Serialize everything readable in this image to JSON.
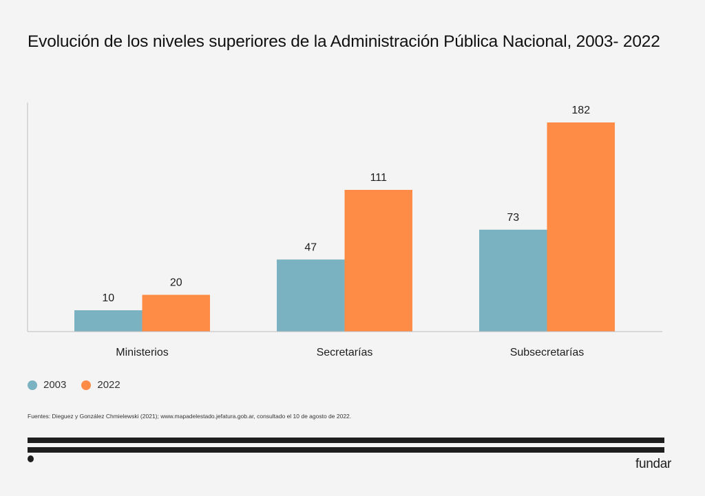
{
  "chart_data": {
    "type": "bar",
    "title": "Evolución de los niveles superiores de la Administración Pública Nacional, 2003- 2022",
    "xlabel": "",
    "ylabel": "",
    "categories": [
      "Ministerios",
      "Secretarías",
      "Subsecretarías"
    ],
    "series": [
      {
        "name": "2003",
        "color": "#7ab2c1",
        "values": [
          10,
          47,
          73
        ]
      },
      {
        "name": "2022",
        "color": "#ff8c46",
        "values": [
          20,
          111,
          182
        ]
      }
    ],
    "ylim": [
      0,
      182
    ],
    "grid": false,
    "legend_position": "bottom-left",
    "data_labels": true
  },
  "source_note": "Fuentes: Dieguez y González Chmielewski (2021); www.mapadelestado.jefatura.gob.ar, consultado el 10 de agosto de 2022.",
  "brand": "fundar",
  "colors": {
    "background": "#f4f4f4",
    "axis": "#bbbbbb",
    "text": "#1d1d1d",
    "footer": "#1e1e1e"
  }
}
